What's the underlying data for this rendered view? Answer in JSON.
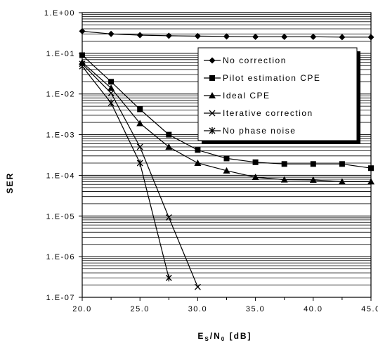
{
  "chart_data": {
    "type": "line",
    "xlabel": {
      "main": "E",
      "sub1": "S",
      "mid": "/N",
      "sub2": "0",
      "tail": " [dB]"
    },
    "ylabel": "SER",
    "xlim": [
      20,
      45
    ],
    "ylim": [
      1e-07,
      1
    ],
    "y_scale": "log",
    "grid": "horizontal",
    "legend_position": "top-right",
    "x_ticks": [
      "20.0",
      "25.0",
      "30.0",
      "35.0",
      "40.0",
      "45.0"
    ],
    "y_ticks": [
      "1.E+00",
      "1.E-01",
      "1.E-02",
      "1.E-03",
      "1.E-04",
      "1.E-05",
      "1.E-06",
      "1.E-07"
    ],
    "series": [
      {
        "name": "No correction",
        "marker": "diamond",
        "x": [
          20,
          22.5,
          25,
          27.5,
          30,
          32.5,
          35,
          37.5,
          40,
          42.5,
          45
        ],
        "y": [
          0.35,
          0.3,
          0.28,
          0.27,
          0.265,
          0.26,
          0.255,
          0.255,
          0.255,
          0.25,
          0.25
        ]
      },
      {
        "name": "Pilot estimation CPE",
        "marker": "square",
        "x": [
          20,
          22.5,
          25,
          27.5,
          30,
          32.5,
          35,
          37.5,
          40,
          42.5,
          45
        ],
        "y": [
          0.09,
          0.02,
          0.0042,
          0.001,
          0.00042,
          0.00026,
          0.00021,
          0.00019,
          0.00019,
          0.00019,
          0.00015
        ]
      },
      {
        "name": "Ideal CPE",
        "marker": "triangle",
        "x": [
          20,
          22.5,
          25,
          27.5,
          30,
          32.5,
          35,
          37.5,
          40,
          42.5,
          45
        ],
        "y": [
          0.06,
          0.014,
          0.0019,
          0.0005,
          0.0002,
          0.00013,
          9e-05,
          7.8e-05,
          7.7e-05,
          7e-05,
          7e-05
        ]
      },
      {
        "name": "Iterative correction",
        "marker": "x",
        "x": [
          20,
          22.5,
          25,
          27.5,
          30
        ],
        "y": [
          0.055,
          0.0105,
          0.0005,
          9.2e-06,
          1.8e-07
        ]
      },
      {
        "name": "No phase noise",
        "marker": "star",
        "x": [
          20,
          22.5,
          25,
          27.5
        ],
        "y": [
          0.048,
          0.006,
          0.0002,
          3e-07
        ]
      }
    ]
  }
}
